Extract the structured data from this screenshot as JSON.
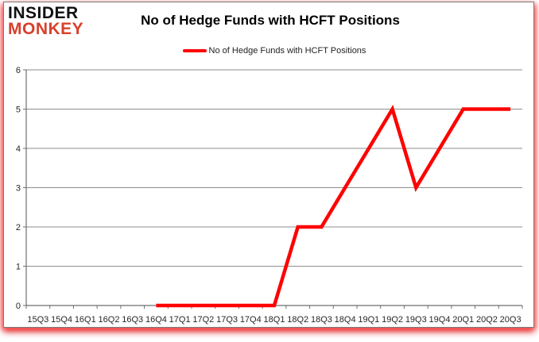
{
  "logo": {
    "line1": "INSIDER",
    "line2": "MONKEY"
  },
  "title": "No of Hedge Funds with HCFT Positions",
  "legend": {
    "label": "No of Hedge Funds with HCFT Positions",
    "swatch_color": "#ff0000"
  },
  "colors": {
    "series_red": "#ff0000",
    "logo_accent": "#d7402b",
    "gridline": "#8e8e8e",
    "axis": "#6e6e6e",
    "tick_label": "#262626"
  },
  "chart_data": {
    "type": "line",
    "title": "No of Hedge Funds with HCFT Positions",
    "categories": [
      "15Q3",
      "15Q4",
      "16Q1",
      "16Q2",
      "16Q3",
      "16Q4",
      "17Q1",
      "17Q2",
      "17Q3",
      "17Q4",
      "18Q1",
      "18Q2",
      "18Q3",
      "18Q4",
      "19Q1",
      "19Q2",
      "19Q3",
      "19Q4",
      "20Q1",
      "20Q2",
      "20Q3"
    ],
    "series": [
      {
        "name": "No of Hedge Funds with HCFT Positions",
        "color": "#ff0000",
        "values": [
          null,
          null,
          null,
          null,
          null,
          0,
          0,
          0,
          0,
          0,
          0,
          2,
          2,
          3,
          4,
          5,
          3,
          4,
          5,
          5,
          5
        ]
      }
    ],
    "xlabel": "",
    "ylabel": "",
    "ylim": [
      0,
      6
    ],
    "yticks": [
      0,
      1,
      2,
      3,
      4,
      5,
      6
    ],
    "grid": true,
    "legend_position": "top"
  }
}
